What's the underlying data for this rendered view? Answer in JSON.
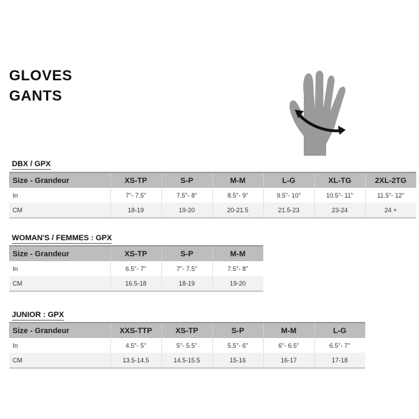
{
  "title_en": "GLOVES",
  "title_fr": "GANTS",
  "icon": "hand-measurement-icon",
  "tables": [
    {
      "name": "DBX / GPX",
      "header": [
        "Size - Grandeur",
        "XS-TP",
        "S-P",
        "M-M",
        "L-G",
        "XL-TG",
        "2XL-2TG"
      ],
      "in": [
        "In",
        "7\"- 7.5\"",
        "7.5\"- 8\"",
        "8.5\"- 9\"",
        "9.5\"- 10\"",
        "10.5\"- 11\"",
        "11.5\"- 12\""
      ],
      "cm": [
        "CM",
        "18-19",
        "19-20",
        "20-21.5",
        "21.5-23",
        "23-24",
        "24 +"
      ]
    },
    {
      "name": "WOMAN'S / FEMMES : GPX",
      "header": [
        "Size - Grandeur",
        "XS-TP",
        "S-P",
        "M-M"
      ],
      "in": [
        "In",
        "6.5\"- 7\"",
        "7\"- 7.5\"",
        "7.5\"- 8\""
      ],
      "cm": [
        "CM",
        "16.5-18",
        "18-19",
        "19-20"
      ]
    },
    {
      "name": "JUNIOR : GPX",
      "header": [
        "Size - Grandeur",
        "XXS-TTP",
        "XS-TP",
        "S-P",
        "M-M",
        "L-G"
      ],
      "in": [
        "In",
        "4.5\"- 5\"",
        "5\"- 5.5\"",
        "5.5\"- 6\"",
        "6\"- 6.5\"",
        "6.5\"- 7\""
      ],
      "cm": [
        "CM",
        "13.5-14.5",
        "14.5-15.5",
        "15-16",
        "16-17",
        "17-18"
      ]
    }
  ]
}
